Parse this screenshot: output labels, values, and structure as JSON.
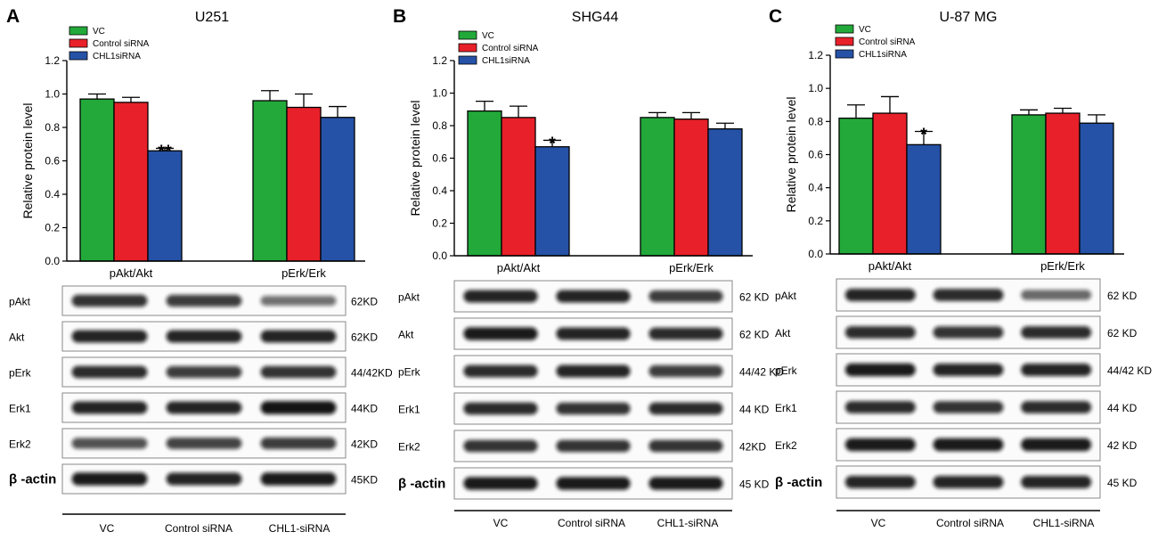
{
  "colors": {
    "vc": "#22a93a",
    "control": "#e8202a",
    "chl1": "#2552a6",
    "axis": "#000000"
  },
  "chart_data": [
    {
      "type": "bar",
      "letter": "A",
      "title": "U251",
      "ylabel": "Relative protein level",
      "ylim": [
        0.0,
        1.2
      ],
      "yticks": [
        "0.0",
        "0.2",
        "0.4",
        "0.6",
        "0.8",
        "1.0",
        "1.2"
      ],
      "categories": [
        "pAkt/Akt",
        "pErk/Erk"
      ],
      "series": [
        {
          "name": "VC",
          "values": [
            0.97,
            0.96
          ],
          "errors": [
            0.03,
            0.06
          ]
        },
        {
          "name": "Control siRNA",
          "values": [
            0.95,
            0.92
          ],
          "errors": [
            0.03,
            0.08
          ]
        },
        {
          "name": "CHL1siRNA",
          "values": [
            0.66,
            0.86
          ],
          "errors": [
            0.015,
            0.065
          ]
        }
      ],
      "significance": [
        "**",
        ""
      ],
      "blot": {
        "rows": [
          {
            "label": "pAkt",
            "kd": "62KD",
            "bands": [
              0.75,
              0.7,
              0.35
            ]
          },
          {
            "label": "Akt",
            "kd": "62KD",
            "bands": [
              0.85,
              0.85,
              0.85
            ]
          },
          {
            "label": "pErk",
            "kd": "44/42KD",
            "bands": [
              0.8,
              0.7,
              0.75
            ]
          },
          {
            "label": "Erk1",
            "kd": "44KD",
            "bands": [
              0.85,
              0.85,
              0.95
            ]
          },
          {
            "label": "Erk2",
            "kd": "42KD",
            "bands": [
              0.55,
              0.65,
              0.7
            ]
          },
          {
            "label": "β -actin",
            "kd": "45KD",
            "bands": [
              0.9,
              0.85,
              0.9
            ],
            "beta": true
          }
        ],
        "lanes": [
          "VC",
          "Control  siRNA",
          "CHL1-siRNA"
        ]
      }
    },
    {
      "type": "bar",
      "letter": "B",
      "title": "SHG44",
      "ylabel": "Relative protein level",
      "ylim": [
        0.0,
        1.2
      ],
      "yticks": [
        "0.0",
        "0.2",
        "0.4",
        "0.6",
        "0.8",
        "1.0",
        "1.2"
      ],
      "categories": [
        "pAkt/Akt",
        "pErk/Erk"
      ],
      "series": [
        {
          "name": "VC",
          "values": [
            0.89,
            0.85
          ],
          "errors": [
            0.06,
            0.03
          ]
        },
        {
          "name": "Control siRNA",
          "values": [
            0.85,
            0.84
          ],
          "errors": [
            0.07,
            0.04
          ]
        },
        {
          "name": "CHL1siRNA",
          "values": [
            0.67,
            0.78
          ],
          "errors": [
            0.04,
            0.035
          ]
        }
      ],
      "significance": [
        "*",
        ""
      ],
      "blot": {
        "rows": [
          {
            "label": "pAkt",
            "kd": "62 KD",
            "bands": [
              0.85,
              0.85,
              0.7
            ]
          },
          {
            "label": "Akt",
            "kd": "62 KD",
            "bands": [
              0.9,
              0.85,
              0.8
            ]
          },
          {
            "label": "pErk",
            "kd": "44/42 KD",
            "bands": [
              0.8,
              0.85,
              0.7
            ]
          },
          {
            "label": "Erk1",
            "kd": "44 KD",
            "bands": [
              0.8,
              0.75,
              0.8
            ]
          },
          {
            "label": "Erk2",
            "kd": "42KD",
            "bands": [
              0.75,
              0.75,
              0.75
            ]
          },
          {
            "label": "β -actin",
            "kd": "45 KD",
            "bands": [
              0.9,
              0.9,
              0.9
            ],
            "beta": true
          }
        ],
        "lanes": [
          "VC",
          "Control  siRNA",
          "CHL1-siRNA"
        ]
      }
    },
    {
      "type": "bar",
      "letter": "C",
      "title": "U-87 MG",
      "ylabel": "Relative protein level",
      "ylim": [
        0.0,
        1.2
      ],
      "yticks": [
        "0.0",
        "0.2",
        "0.4",
        "0.6",
        "0.8",
        "1.0",
        "1.2"
      ],
      "categories": [
        "pAkt/Akt",
        "pErk/Erk"
      ],
      "series": [
        {
          "name": "VC",
          "values": [
            0.82,
            0.84
          ],
          "errors": [
            0.08,
            0.03
          ]
        },
        {
          "name": "Control siRNA",
          "values": [
            0.85,
            0.85
          ],
          "errors": [
            0.1,
            0.03
          ]
        },
        {
          "name": "CHL1siRNA",
          "values": [
            0.66,
            0.79
          ],
          "errors": [
            0.08,
            0.05
          ]
        }
      ],
      "significance": [
        "*",
        ""
      ],
      "blot": {
        "rows": [
          {
            "label": "pAkt",
            "kd": "62 KD",
            "bands": [
              0.85,
              0.8,
              0.4
            ]
          },
          {
            "label": "Akt",
            "kd": "62 KD",
            "bands": [
              0.8,
              0.75,
              0.8
            ]
          },
          {
            "label": "pErk",
            "kd": "44/42 KD",
            "bands": [
              0.9,
              0.85,
              0.85
            ]
          },
          {
            "label": "Erk1",
            "kd": "44 KD",
            "bands": [
              0.8,
              0.75,
              0.8
            ]
          },
          {
            "label": "Erk2",
            "kd": "42 KD",
            "bands": [
              0.9,
              0.9,
              0.9
            ]
          },
          {
            "label": "β -actin",
            "kd": "45 KD",
            "bands": [
              0.85,
              0.85,
              0.85
            ],
            "beta": true
          }
        ],
        "lanes": [
          "VC",
          "Control  siRNA",
          "CHL1-siRNA"
        ]
      }
    }
  ]
}
